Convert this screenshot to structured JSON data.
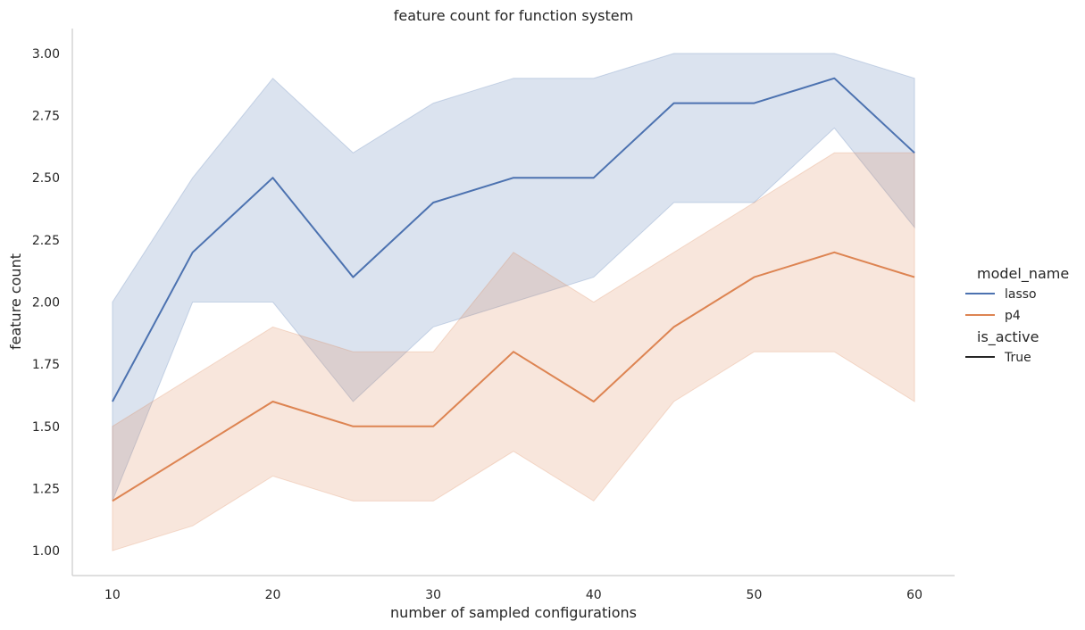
{
  "chart_data": {
    "type": "line",
    "title": "feature count for function system",
    "xlabel": "number of sampled configurations",
    "ylabel": "feature count",
    "x": [
      10,
      15,
      20,
      25,
      30,
      35,
      40,
      45,
      50,
      55,
      60
    ],
    "xlim": [
      7.5,
      62.5
    ],
    "ylim": [
      0.9,
      3.1
    ],
    "xticks": [
      10,
      20,
      30,
      40,
      50,
      60
    ],
    "yticks": [
      "1.00",
      "1.25",
      "1.50",
      "1.75",
      "2.00",
      "2.25",
      "2.50",
      "2.75",
      "3.00"
    ],
    "grid": false,
    "legend_position": "right",
    "legend": {
      "hue_title": "model_name",
      "style_title": "is_active",
      "style_entries": [
        "True"
      ]
    },
    "series": [
      {
        "name": "lasso",
        "color": "#4c72b0",
        "values": [
          1.6,
          2.2,
          2.5,
          2.1,
          2.4,
          2.5,
          2.5,
          2.8,
          2.8,
          2.9,
          2.6
        ],
        "ci_lower": [
          1.2,
          2.0,
          2.0,
          1.6,
          1.9,
          2.0,
          2.1,
          2.4,
          2.4,
          2.7,
          2.3
        ],
        "ci_upper": [
          2.0,
          2.5,
          2.9,
          2.6,
          2.8,
          2.9,
          2.9,
          3.0,
          3.0,
          3.0,
          2.9
        ]
      },
      {
        "name": "p4",
        "color": "#dd8452",
        "values": [
          1.2,
          1.4,
          1.6,
          1.5,
          1.5,
          1.8,
          1.6,
          1.9,
          2.1,
          2.2,
          2.1
        ],
        "ci_lower": [
          1.0,
          1.1,
          1.3,
          1.2,
          1.2,
          1.4,
          1.2,
          1.6,
          1.8,
          1.8,
          1.6
        ],
        "ci_upper": [
          1.5,
          1.7,
          1.9,
          1.8,
          1.8,
          2.2,
          2.0,
          2.2,
          2.4,
          2.6,
          2.6
        ]
      }
    ]
  }
}
